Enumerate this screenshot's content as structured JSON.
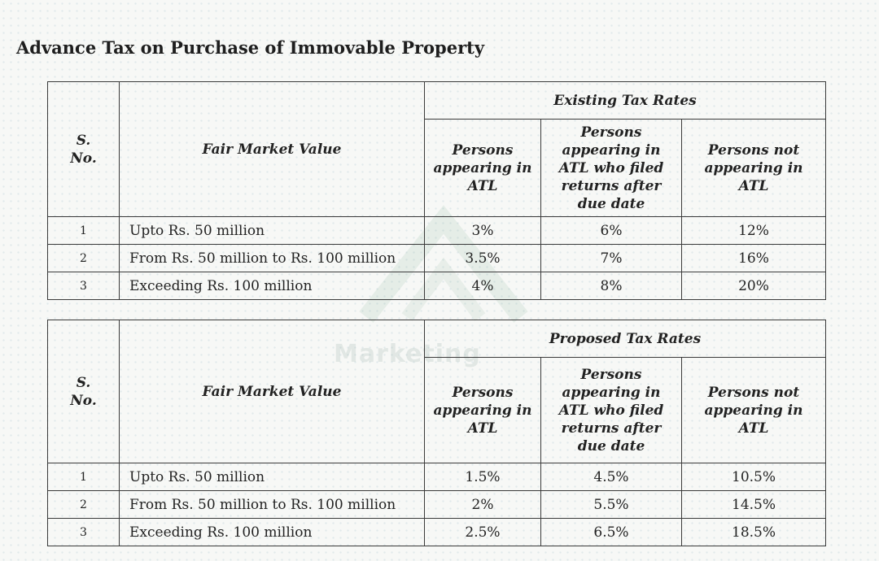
{
  "title": "Advance Tax on Purchase of Immovable Property",
  "watermark": "Marketing",
  "tables": [
    {
      "group_header": "Existing Tax Rates",
      "sno_header": "S. No.",
      "fmv_header": "Fair Market Value",
      "col1_header": "Persons appearing in ATL",
      "col2_header": "Persons appearing in ATL who filed returns after due date",
      "col3_header": "Persons not appearing in ATL",
      "rows": [
        {
          "sno": "1",
          "fmv": "Upto Rs. 50 million",
          "atl": "3%",
          "late": "6%",
          "non": "12%"
        },
        {
          "sno": "2",
          "fmv": "From Rs. 50 million to Rs. 100 million",
          "atl": "3.5%",
          "late": "7%",
          "non": "16%"
        },
        {
          "sno": "3",
          "fmv": "Exceeding Rs. 100 million",
          "atl": "4%",
          "late": "8%",
          "non": "20%"
        }
      ]
    },
    {
      "group_header": "Proposed Tax Rates",
      "sno_header": "S. No.",
      "fmv_header": "Fair Market Value",
      "col1_header": "Persons appearing in ATL",
      "col2_header": "Persons appearing in ATL who filed returns after due date",
      "col3_header": "Persons not appearing in ATL",
      "rows": [
        {
          "sno": "1",
          "fmv": "Upto Rs. 50 million",
          "atl": "1.5%",
          "late": "4.5%",
          "non": "10.5%"
        },
        {
          "sno": "2",
          "fmv": "From Rs. 50 million to Rs. 100 million",
          "atl": "2%",
          "late": "5.5%",
          "non": "14.5%"
        },
        {
          "sno": "3",
          "fmv": "Exceeding Rs. 100 million",
          "atl": "2.5%",
          "late": "6.5%",
          "non": "18.5%"
        }
      ]
    }
  ]
}
